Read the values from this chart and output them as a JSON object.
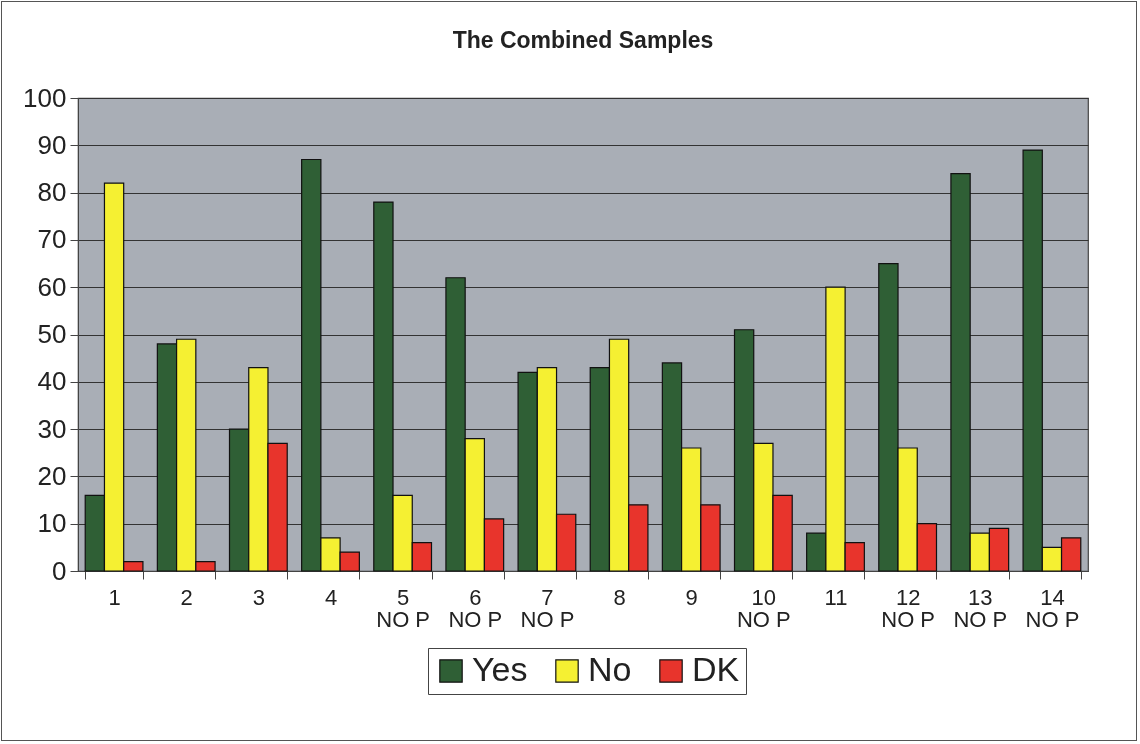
{
  "chart_data": {
    "type": "bar",
    "title": "The Combined  Samples",
    "categories": [
      "1",
      "2",
      "3",
      "4",
      "5\nNO P",
      "6\nNO P",
      "7\nNO P",
      "8",
      "9",
      "10\nNO P",
      "11",
      "12\nNO P",
      "13\nNO P",
      "14\nNO P"
    ],
    "series": [
      {
        "name": "Yes",
        "color": "#2f5f35",
        "values": [
          16,
          48,
          30,
          87,
          78,
          62,
          42,
          43,
          44,
          51,
          8,
          65,
          84,
          89
        ]
      },
      {
        "name": "No",
        "color": "#f5f032",
        "values": [
          82,
          49,
          43,
          7,
          16,
          28,
          43,
          49,
          26,
          27,
          60,
          26,
          8,
          5
        ]
      },
      {
        "name": "DK",
        "color": "#e8342c",
        "values": [
          2,
          2,
          27,
          4,
          6,
          11,
          12,
          14,
          14,
          16,
          6,
          10,
          9,
          7
        ]
      }
    ],
    "ylim": [
      0,
      100
    ],
    "yticks": [
      0,
      10,
      20,
      30,
      40,
      50,
      60,
      70,
      80,
      90,
      100
    ],
    "grid": "y",
    "legend": "bottom"
  }
}
